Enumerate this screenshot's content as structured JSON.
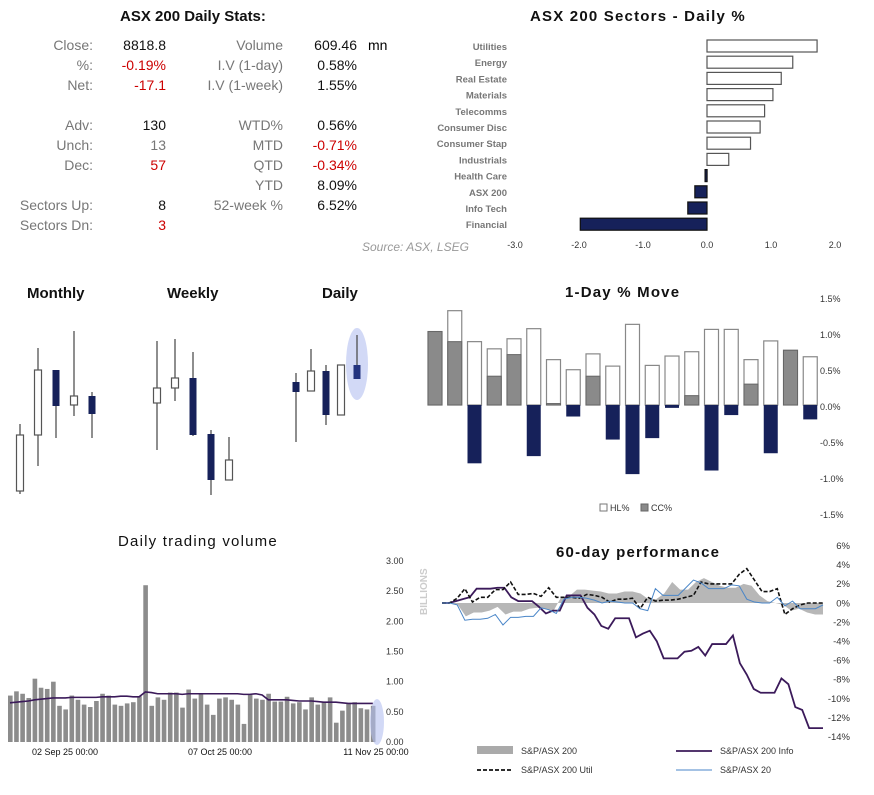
{
  "stats": {
    "title": "ASX 200 Daily Stats:",
    "volume_unit": "mn",
    "rows": [
      {
        "l1": "Close:",
        "v1": "8818.8",
        "c1": "#111111",
        "l2": "Volume",
        "v2": "609.46",
        "c2": "#111111"
      },
      {
        "l1": "%:",
        "v1": "-0.19%",
        "c1": "#cc0000",
        "l2": "I.V (1-day)",
        "v2": "0.58%",
        "c2": "#111111"
      },
      {
        "l1": "Net:",
        "v1": "-17.1",
        "c1": "#cc0000",
        "l2": "I.V (1-week)",
        "v2": "1.55%",
        "c2": "#111111"
      },
      {
        "l1": "Adv:",
        "v1": "130",
        "c1": "#111111",
        "l2": "WTD%",
        "v2": "0.56%",
        "c2": "#111111"
      },
      {
        "l1": "Unch:",
        "v1": "13",
        "c1": "#777777",
        "l2": "MTD",
        "v2": "-0.71%",
        "c2": "#cc0000"
      },
      {
        "l1": "Dec:",
        "v1": "57",
        "c1": "#cc0000",
        "l2": "QTD",
        "v2": "-0.34%",
        "c2": "#cc0000"
      },
      {
        "l1": "",
        "v1": "",
        "c1": "#111111",
        "l2": "YTD",
        "v2": "8.09%",
        "c2": "#111111"
      },
      {
        "l1": "Sectors Up:",
        "v1": "8",
        "c1": "#111111",
        "l2": "52-week %",
        "v2": "6.52%",
        "c2": "#111111"
      },
      {
        "l1": "Sectors Dn:",
        "v1": "3",
        "c1": "#cc0000",
        "l2": "",
        "v2": "",
        "c2": "#111111"
      }
    ],
    "source": "Source: ASX, LSEG"
  },
  "colors": {
    "navy": "#16215a",
    "gray": "#8a8a8a",
    "purple": "#3b1a5a",
    "blue": "#4a86c8",
    "highlight": "#b4bff0"
  },
  "chart_data": [
    {
      "type": "bar",
      "title": "ASX 200 Sectors - Daily %",
      "orientation": "horizontal",
      "categories": [
        "Utilities",
        "Energy",
        "Real Estate",
        "Materials",
        "Telecomms",
        "Consumer Disc",
        "Consumer Stap",
        "Industrials",
        "Health Care",
        "ASX 200",
        "Info Tech",
        "Financial"
      ],
      "values": [
        1.72,
        1.34,
        1.16,
        1.03,
        0.9,
        0.83,
        0.68,
        0.34,
        -0.03,
        -0.19,
        -0.3,
        -1.98
      ],
      "xlim": [
        -3,
        2
      ],
      "xticks": [
        "-3.0",
        "-2.0",
        "-1.0",
        "0.0",
        "1.0",
        "2.0"
      ]
    },
    {
      "type": "candlestick",
      "panels": [
        {
          "title": "Monthly",
          "candles": [
            {
              "o": 6,
              "h": 73,
              "l": 3,
              "c": 62,
              "up": true
            },
            {
              "o": 62,
              "h": 149,
              "l": 31,
              "c": 127,
              "up": true
            },
            {
              "o": 127,
              "h": 127,
              "l": 59,
              "c": 91,
              "up": false
            },
            {
              "o": 92,
              "h": 166,
              "l": 81,
              "c": 101,
              "up": true
            },
            {
              "o": 101,
              "h": 105,
              "l": 59,
              "c": 83,
              "up": false
            }
          ]
        },
        {
          "title": "Weekly",
          "candles": [
            {
              "o": 94,
              "h": 156,
              "l": 47,
              "c": 109,
              "up": true
            },
            {
              "o": 109,
              "h": 158,
              "l": 96,
              "c": 119,
              "up": true
            },
            {
              "o": 119,
              "h": 145,
              "l": 61,
              "c": 62,
              "up": false
            },
            {
              "o": 63,
              "h": 67,
              "l": 2,
              "c": 17,
              "up": false
            },
            {
              "o": 17,
              "h": 60,
              "l": 17,
              "c": 37,
              "up": true
            }
          ]
        },
        {
          "title": "Daily",
          "candles": [
            {
              "o": 115,
              "h": 124,
              "l": 55,
              "c": 105,
              "up": false
            },
            {
              "o": 106,
              "h": 148,
              "l": 106,
              "c": 126,
              "up": true
            },
            {
              "o": 126,
              "h": 132,
              "l": 72,
              "c": 82,
              "up": false
            },
            {
              "o": 82,
              "h": 132,
              "l": 82,
              "c": 132,
              "up": true
            },
            {
              "o": 132,
              "h": 162,
              "l": 118,
              "c": 118,
              "up": false,
              "highlighted": true
            }
          ]
        }
      ]
    },
    {
      "type": "bar",
      "title": "1-Day % Move",
      "series": [
        {
          "name": "HL%",
          "values": [
            1.02,
            1.31,
            0.88,
            0.78,
            0.92,
            1.06,
            0.63,
            0.49,
            0.71,
            0.54,
            1.12,
            0.55,
            0.68,
            0.74,
            1.05,
            1.05,
            0.63,
            0.89,
            0.76,
            0.67
          ]
        },
        {
          "name": "CC%",
          "values": [
            1.02,
            0.88,
            -0.81,
            0.4,
            0.7,
            -0.71,
            0.02,
            -0.16,
            0.4,
            -0.48,
            -0.96,
            -0.46,
            -0.04,
            0.13,
            -0.91,
            -0.14,
            0.29,
            -0.67,
            0.76,
            -0.2
          ]
        }
      ],
      "ylim": [
        -1.5,
        1.5
      ],
      "yticks": [
        "1.5%",
        "1.0%",
        "0.5%",
        "0.0%",
        "-0.5%",
        "-1.0%",
        "-1.5%"
      ],
      "legend": "bottom"
    },
    {
      "type": "bar",
      "title": "Daily trading volume",
      "ylabel": "BILLIONS",
      "ylim": [
        0,
        3
      ],
      "yticks": [
        "3.00",
        "2.50",
        "2.00",
        "1.50",
        "1.00",
        "0.50",
        "0.00"
      ],
      "xticks": [
        "02 Sep 25 00:00",
        "07 Oct 25 00:00",
        "11 Nov 25 00:00"
      ],
      "values": [
        0.77,
        0.84,
        0.8,
        0.73,
        1.05,
        0.9,
        0.88,
        1.0,
        0.6,
        0.54,
        0.77,
        0.7,
        0.62,
        0.58,
        0.68,
        0.8,
        0.77,
        0.62,
        0.6,
        0.64,
        0.66,
        0.76,
        2.6,
        0.6,
        0.74,
        0.7,
        0.82,
        0.82,
        0.57,
        0.87,
        0.72,
        0.8,
        0.62,
        0.45,
        0.72,
        0.74,
        0.7,
        0.62,
        0.3,
        0.78,
        0.72,
        0.7,
        0.8,
        0.67,
        0.67,
        0.75,
        0.64,
        0.66,
        0.54,
        0.74,
        0.62,
        0.66,
        0.74,
        0.32,
        0.52,
        0.64,
        0.66,
        0.56,
        0.54,
        0.6
      ],
      "moving_average": [
        0.65,
        0.66,
        0.67,
        0.68,
        0.7,
        0.71,
        0.72,
        0.73,
        0.73,
        0.73,
        0.74,
        0.74,
        0.74,
        0.74,
        0.74,
        0.75,
        0.75,
        0.75,
        0.76,
        0.76,
        0.75,
        0.75,
        0.83,
        0.82,
        0.8,
        0.8,
        0.8,
        0.8,
        0.79,
        0.8,
        0.8,
        0.8,
        0.8,
        0.8,
        0.8,
        0.8,
        0.8,
        0.8,
        0.79,
        0.79,
        0.8,
        0.78,
        0.7,
        0.7,
        0.7,
        0.7,
        0.69,
        0.68,
        0.68,
        0.68,
        0.67,
        0.66,
        0.66,
        0.66,
        0.65,
        0.64,
        0.64,
        0.64,
        0.64,
        0.64
      ]
    },
    {
      "type": "line",
      "title": "60-day performance",
      "ylim": [
        -14,
        6
      ],
      "yticks": [
        "6%",
        "4%",
        "2%",
        "0%",
        "-2%",
        "-4%",
        "-6%",
        "-8%",
        "-10%",
        "-12%",
        "-14%"
      ],
      "legend": "bottom",
      "series": [
        {
          "name": "S&P/ASX 200",
          "style": "area",
          "values": [
            0,
            0,
            -0.2,
            -1.4,
            -1.0,
            -1.0,
            -0.8,
            -0.4,
            -1.2,
            -0.9,
            -0.9,
            -0.6,
            -0.5,
            -0.6,
            -0.9,
            0.6,
            0.7,
            1.4,
            1.4,
            1.3,
            1.2,
            1.0,
            1.0,
            1.2,
            1.2,
            1.0,
            0.4,
            0.4,
            1.0,
            2.2,
            1.4,
            1.4,
            2.2,
            2.6,
            2.2,
            1.8,
            1.6,
            1.6,
            2.0,
            1.8,
            0.8,
            0.2,
            0,
            -0.2,
            -0.8,
            -0.6,
            -1.0,
            -1.2,
            -1.2
          ]
        },
        {
          "name": "S&P/ASX 200 Info",
          "style": "solid",
          "values": [
            0,
            0,
            0.2,
            0.4,
            0.6,
            1.5,
            1.5,
            1.5,
            1.6,
            1.6,
            0.6,
            0.2,
            0.2,
            0.2,
            -0.4,
            -1.1,
            -0.8,
            -0.8,
            0.8,
            0.8,
            0.8,
            -0.5,
            -1.2,
            -2.4,
            -2.7,
            -1.6,
            -1.6,
            -1.6,
            -3.6,
            -3.2,
            -2.9,
            -4.0,
            -5.8,
            -5.8,
            -5.8,
            -5.1,
            -5.0,
            -4.6,
            -5.5,
            -4.3,
            -4.3,
            -4.3,
            -3.4,
            -6.3,
            -7.5,
            -9.0,
            -9.4,
            -9.4,
            -9.4,
            -7.9,
            -8.5,
            -10.9,
            -11.2,
            -13.1,
            -13.1,
            -13.1
          ]
        },
        {
          "name": "S&P/ASX 200 Util",
          "style": "dashed",
          "values": [
            0,
            0,
            0.5,
            1.5,
            0.1,
            0.6,
            0.6,
            1.4,
            1.4,
            2.2,
            0.9,
            0.9,
            1.0,
            0.7,
            1.6,
            0.6,
            0.6,
            0.6,
            0.5,
            0.9,
            0.8,
            0.6,
            0.1,
            0.4,
            0.4,
            0.5,
            -0.6,
            0.6,
            0.2,
            0.3,
            0.3,
            0.4,
            0.6,
            0.8,
            2.2,
            2.0,
            2.0,
            2.0,
            2.0,
            3.0,
            3.6,
            2.4,
            1.2,
            1.2,
            1.5,
            -1.2,
            -0.6,
            -0.2,
            0,
            0,
            0
          ]
        },
        {
          "name": "S&P/ASX 20",
          "style": "thin",
          "values": [
            0,
            0,
            -0.2,
            -1.8,
            -1.7,
            -1.7,
            -1.6,
            -1.2,
            -2.3,
            -1.5,
            -1.5,
            -1.4,
            -1.4,
            -0.5,
            -0.7,
            -1.1,
            0.4,
            0.6,
            0.6,
            0.5,
            0.3,
            0,
            0.2,
            0.1,
            0,
            0,
            -0.6,
            -0.8,
            1.5,
            0.8,
            0.8,
            0.8,
            1.6,
            2.4,
            2.1,
            1.5,
            1.5,
            1.5,
            1.9,
            1.8,
            0.4,
            0.1,
            0,
            0,
            0.6,
            -0.3,
            0.2,
            -0.6,
            -0.6,
            -0.6,
            -0.2
          ]
        }
      ]
    }
  ]
}
